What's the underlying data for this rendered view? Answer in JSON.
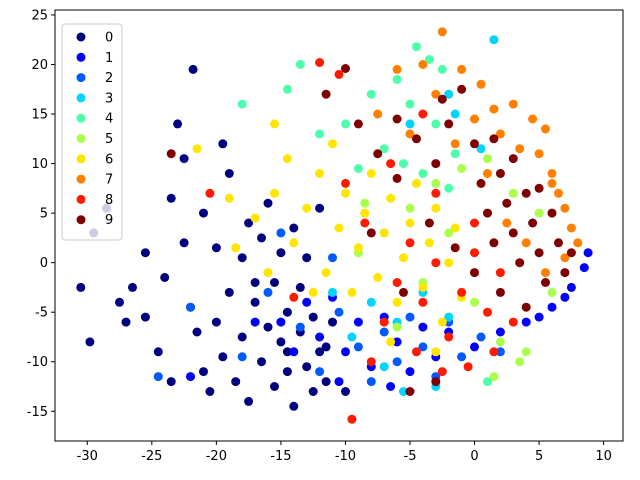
{
  "chart_data": {
    "type": "scatter",
    "title": "",
    "xlabel": "",
    "ylabel": "",
    "xlim": [
      -32.5,
      11.5
    ],
    "ylim": [
      -18,
      25.5
    ],
    "xticks": [
      -30,
      -25,
      -20,
      -15,
      -10,
      -5,
      0,
      5,
      10
    ],
    "yticks": [
      -15,
      -10,
      -5,
      0,
      5,
      10,
      15,
      20,
      25
    ],
    "grid": false,
    "legend_position": "top-left",
    "series": [
      {
        "name": "0",
        "color": "#00007f",
        "points": [
          [
            -29.8,
            -8.0
          ],
          [
            -29.5,
            3.0
          ],
          [
            -27.5,
            -4.0
          ],
          [
            -26.5,
            -2.5
          ],
          [
            -25.5,
            -5.5
          ],
          [
            -24.5,
            -9.0
          ],
          [
            -24.0,
            -1.5
          ],
          [
            -23.5,
            6.5
          ],
          [
            -23.0,
            14.0
          ],
          [
            -22.5,
            2.0
          ],
          [
            -22.0,
            -4.5
          ],
          [
            -21.5,
            -7.0
          ],
          [
            -21.0,
            -11.0
          ],
          [
            -21.0,
            5.0
          ],
          [
            -20.5,
            -13.0
          ],
          [
            -20.0,
            1.5
          ],
          [
            -20.0,
            -6.0
          ],
          [
            -19.5,
            -9.5
          ],
          [
            -19.0,
            -3.0
          ],
          [
            -19.0,
            9.0
          ],
          [
            -18.5,
            -12.0
          ],
          [
            -18.0,
            0.5
          ],
          [
            -18.0,
            -7.5
          ],
          [
            -17.5,
            -14.0
          ],
          [
            -17.5,
            4.0
          ],
          [
            -17.0,
            -4.0
          ],
          [
            -16.5,
            -10.0
          ],
          [
            -16.5,
            2.5
          ],
          [
            -16.0,
            -6.5
          ],
          [
            -16.0,
            6.0
          ],
          [
            -15.5,
            -12.5
          ],
          [
            -15.5,
            -2.0
          ],
          [
            -15.0,
            -8.0
          ],
          [
            -15.0,
            1.0
          ],
          [
            -14.5,
            -5.0
          ],
          [
            -14.5,
            -11.0
          ],
          [
            -14.0,
            -14.5
          ],
          [
            -14.0,
            3.5
          ],
          [
            -13.5,
            -7.0
          ],
          [
            -13.5,
            -2.5
          ],
          [
            -13.0,
            -10.5
          ],
          [
            -13.0,
            0.5
          ],
          [
            -12.5,
            -13.0
          ],
          [
            -12.5,
            -5.5
          ],
          [
            -12.0,
            -9.0
          ],
          [
            -12.0,
            5.5
          ],
          [
            -11.5,
            -12.0
          ],
          [
            -11.0,
            -6.0
          ],
          [
            -21.8,
            19.5
          ],
          [
            -30.5,
            -2.5
          ],
          [
            -28.5,
            5.5
          ],
          [
            -27.0,
            -6.0
          ],
          [
            -25.5,
            1.0
          ],
          [
            -23.5,
            -12.0
          ],
          [
            -22.5,
            10.5
          ],
          [
            -19.5,
            12.0
          ],
          [
            -17.0,
            -2.0
          ],
          [
            -14.5,
            -9.0
          ],
          [
            -11.5,
            -8.5
          ],
          [
            -10.0,
            -13.0
          ]
        ]
      },
      {
        "name": "1",
        "color": "#0000ff",
        "points": [
          [
            -15.0,
            -6.0
          ],
          [
            -14.0,
            -9.0
          ],
          [
            -13.0,
            -4.0
          ],
          [
            -12.0,
            -7.5
          ],
          [
            -11.0,
            -3.5
          ],
          [
            -10.0,
            -9.0
          ],
          [
            -9.0,
            -6.0
          ],
          [
            -8.0,
            -10.5
          ],
          [
            -7.0,
            -5.5
          ],
          [
            -6.0,
            -8.0
          ],
          [
            -5.0,
            -11.0
          ],
          [
            -4.0,
            -6.5
          ],
          [
            -3.0,
            -9.5
          ],
          [
            -2.0,
            -7.0
          ],
          [
            0.0,
            -8.5
          ],
          [
            2.0,
            -7.0
          ],
          [
            4.0,
            -6.0
          ],
          [
            6.0,
            -4.5
          ],
          [
            7.5,
            -2.5
          ],
          [
            8.5,
            -0.5
          ],
          [
            8.8,
            1.0
          ],
          [
            -22.0,
            -11.5
          ],
          [
            -17.0,
            -6.0
          ],
          [
            -10.5,
            -12.0
          ],
          [
            -6.5,
            -12.5
          ],
          [
            5.0,
            -5.5
          ],
          [
            7.0,
            -3.5
          ]
        ]
      },
      {
        "name": "2",
        "color": "#005aff",
        "points": [
          [
            -24.5,
            -11.5
          ],
          [
            -22.0,
            -4.5
          ],
          [
            -18.0,
            -9.5
          ],
          [
            -16.0,
            -3.0
          ],
          [
            -13.5,
            -6.5
          ],
          [
            -12.0,
            -11.0
          ],
          [
            -10.5,
            -5.0
          ],
          [
            -9.0,
            -8.5
          ],
          [
            -8.0,
            -12.0
          ],
          [
            -7.0,
            -7.0
          ],
          [
            -6.0,
            -10.0
          ],
          [
            -5.0,
            -5.5
          ],
          [
            -4.0,
            -8.5
          ],
          [
            -3.0,
            -11.5
          ],
          [
            -2.0,
            -6.0
          ],
          [
            -1.0,
            -9.5
          ],
          [
            0.5,
            -7.5
          ],
          [
            2.0,
            -9.0
          ],
          [
            -11.0,
            0.5
          ],
          [
            -15.0,
            3.0
          ]
        ]
      },
      {
        "name": "3",
        "color": "#00d4ff",
        "points": [
          [
            1.5,
            22.5
          ],
          [
            -2.0,
            17.0
          ],
          [
            -5.0,
            14.0
          ],
          [
            -8.0,
            -4.0
          ],
          [
            -6.0,
            -6.0
          ],
          [
            -4.0,
            -3.0
          ],
          [
            -2.0,
            -5.5
          ],
          [
            -7.0,
            -10.5
          ],
          [
            -9.5,
            -7.5
          ],
          [
            -3.0,
            -12.5
          ],
          [
            -5.5,
            -13.0
          ],
          [
            -11.0,
            -3.0
          ],
          [
            0.5,
            11.5
          ],
          [
            -1.5,
            15.0
          ]
        ]
      },
      {
        "name": "4",
        "color": "#4dffaa",
        "points": [
          [
            -18.0,
            16.0
          ],
          [
            -13.5,
            20.0
          ],
          [
            -14.5,
            17.5
          ],
          [
            -12.0,
            13.0
          ],
          [
            -10.0,
            14.0
          ],
          [
            -8.0,
            17.0
          ],
          [
            -6.0,
            18.5
          ],
          [
            -4.5,
            21.8
          ],
          [
            -3.5,
            20.5
          ],
          [
            -2.5,
            19.5
          ],
          [
            -5.0,
            16.0
          ],
          [
            -3.0,
            14.0
          ],
          [
            -7.0,
            11.5
          ],
          [
            -9.0,
            9.5
          ],
          [
            -5.5,
            10.0
          ],
          [
            -1.5,
            11.0
          ],
          [
            1.0,
            -12.0
          ],
          [
            -4.0,
            9.0
          ],
          [
            -2.0,
            7.5
          ]
        ]
      },
      {
        "name": "5",
        "color": "#aaff4d",
        "points": [
          [
            -9.0,
            1.0
          ],
          [
            -7.0,
            3.0
          ],
          [
            -5.0,
            5.5
          ],
          [
            -3.0,
            8.0
          ],
          [
            -1.0,
            9.5
          ],
          [
            1.0,
            10.5
          ],
          [
            3.0,
            7.0
          ],
          [
            5.0,
            5.0
          ],
          [
            -2.0,
            3.0
          ],
          [
            0.0,
            -4.0
          ],
          [
            2.0,
            -8.0
          ],
          [
            4.0,
            -9.0
          ],
          [
            -4.0,
            -2.0
          ],
          [
            -6.0,
            -6.5
          ],
          [
            1.5,
            -11.5
          ],
          [
            3.5,
            -10.0
          ],
          [
            6.0,
            -3.0
          ],
          [
            -8.5,
            6.0
          ]
        ]
      },
      {
        "name": "6",
        "color": "#ffe600",
        "points": [
          [
            -21.5,
            11.5
          ],
          [
            -19.0,
            6.5
          ],
          [
            -17.0,
            4.5
          ],
          [
            -15.5,
            7.0
          ],
          [
            -14.0,
            2.0
          ],
          [
            -13.0,
            5.5
          ],
          [
            -12.0,
            9.0
          ],
          [
            -11.5,
            -1.0
          ],
          [
            -10.5,
            3.5
          ],
          [
            -10.0,
            7.0
          ],
          [
            -9.5,
            -3.0
          ],
          [
            -9.0,
            1.5
          ],
          [
            -8.5,
            5.0
          ],
          [
            -8.0,
            9.0
          ],
          [
            -7.5,
            -1.5
          ],
          [
            -7.0,
            3.0
          ],
          [
            -6.5,
            6.5
          ],
          [
            -6.0,
            -4.0
          ],
          [
            -5.5,
            0.5
          ],
          [
            -5.0,
            4.0
          ],
          [
            -4.5,
            8.0
          ],
          [
            -4.0,
            -2.5
          ],
          [
            -3.5,
            2.0
          ],
          [
            -3.0,
            5.5
          ],
          [
            -2.5,
            -6.0
          ],
          [
            -2.0,
            0.0
          ],
          [
            -1.5,
            3.5
          ],
          [
            -1.0,
            -3.5
          ],
          [
            -12.5,
            -3.0
          ],
          [
            -14.5,
            10.5
          ],
          [
            -16.0,
            -1.0
          ],
          [
            -6.5,
            -8.0
          ],
          [
            -3.0,
            -9.0
          ],
          [
            -11.0,
            12.0
          ],
          [
            -18.5,
            1.5
          ],
          [
            -15.5,
            14.0
          ]
        ]
      },
      {
        "name": "7",
        "color": "#ff7f00",
        "points": [
          [
            -2.5,
            23.3
          ],
          [
            -4.0,
            20.0
          ],
          [
            -1.0,
            19.5
          ],
          [
            0.5,
            18.0
          ],
          [
            1.5,
            15.5
          ],
          [
            -3.0,
            17.0
          ],
          [
            -6.0,
            19.5
          ],
          [
            2.0,
            13.0
          ],
          [
            3.0,
            16.0
          ],
          [
            4.5,
            14.5
          ],
          [
            5.0,
            11.0
          ],
          [
            6.0,
            9.0
          ],
          [
            6.5,
            7.0
          ],
          [
            7.0,
            5.5
          ],
          [
            7.5,
            3.5
          ],
          [
            8.0,
            2.0
          ],
          [
            7.0,
            0.5
          ],
          [
            6.0,
            8.0
          ],
          [
            5.5,
            13.5
          ],
          [
            3.5,
            11.5
          ],
          [
            1.0,
            9.0
          ],
          [
            -1.5,
            12.0
          ],
          [
            0.0,
            14.5
          ],
          [
            2.5,
            4.0
          ],
          [
            4.0,
            2.0
          ],
          [
            5.5,
            -1.0
          ],
          [
            -7.5,
            15.0
          ],
          [
            -5.0,
            13.0
          ]
        ]
      },
      {
        "name": "8",
        "color": "#ff1a00",
        "points": [
          [
            -12.0,
            20.2
          ],
          [
            -10.5,
            19.0
          ],
          [
            -9.5,
            -15.8
          ],
          [
            -8.0,
            -10.0
          ],
          [
            -7.0,
            -6.0
          ],
          [
            -6.0,
            -2.0
          ],
          [
            -5.0,
            2.0
          ],
          [
            -4.0,
            -4.0
          ],
          [
            -3.0,
            0.0
          ],
          [
            -2.0,
            -7.5
          ],
          [
            -1.0,
            -3.0
          ],
          [
            0.0,
            1.0
          ],
          [
            1.0,
            -5.0
          ],
          [
            2.0,
            -1.0
          ],
          [
            3.0,
            -6.0
          ],
          [
            -4.5,
            -9.0
          ],
          [
            -2.5,
            -11.0
          ],
          [
            -0.5,
            -10.5
          ],
          [
            1.5,
            -9.0
          ],
          [
            -8.5,
            4.0
          ],
          [
            -10.0,
            8.0
          ],
          [
            -6.5,
            10.0
          ],
          [
            -4.0,
            15.0
          ],
          [
            -20.5,
            7.0
          ],
          [
            -14.0,
            -3.5
          ],
          [
            0.0,
            4.0
          ],
          [
            -3.0,
            7.0
          ]
        ]
      },
      {
        "name": "9",
        "color": "#7f0000",
        "points": [
          [
            -23.5,
            11.0
          ],
          [
            -10.0,
            19.6
          ],
          [
            -11.5,
            17.0
          ],
          [
            -9.0,
            14.0
          ],
          [
            -7.5,
            11.0
          ],
          [
            -6.0,
            8.5
          ],
          [
            -4.5,
            12.5
          ],
          [
            -3.0,
            10.0
          ],
          [
            -2.0,
            14.0
          ],
          [
            -1.0,
            17.5
          ],
          [
            0.0,
            12.0
          ],
          [
            0.5,
            8.0
          ],
          [
            1.0,
            5.0
          ],
          [
            1.5,
            2.0
          ],
          [
            2.0,
            9.0
          ],
          [
            2.5,
            6.0
          ],
          [
            3.0,
            3.0
          ],
          [
            3.5,
            0.0
          ],
          [
            4.0,
            7.0
          ],
          [
            4.5,
            4.0
          ],
          [
            5.0,
            1.0
          ],
          [
            5.5,
            -2.0
          ],
          [
            6.0,
            5.0
          ],
          [
            6.5,
            2.0
          ],
          [
            7.0,
            -1.0
          ],
          [
            7.5,
            1.0
          ],
          [
            2.0,
            -3.0
          ],
          [
            4.0,
            -4.5
          ],
          [
            0.0,
            -1.0
          ],
          [
            -1.5,
            1.5
          ],
          [
            -3.5,
            4.0
          ],
          [
            -5.0,
            -13.0
          ],
          [
            -3.0,
            -12.0
          ],
          [
            -2.5,
            16.5
          ],
          [
            1.5,
            12.5
          ],
          [
            -6.0,
            14.5
          ],
          [
            -8.0,
            3.0
          ],
          [
            -5.5,
            -3.0
          ],
          [
            3.0,
            10.5
          ],
          [
            5.0,
            7.5
          ]
        ]
      }
    ]
  }
}
